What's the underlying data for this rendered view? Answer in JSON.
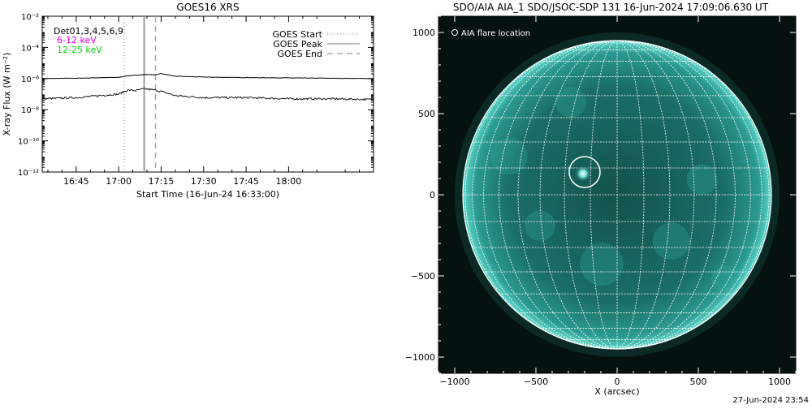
{
  "footer_timestamp": "27-Jun-2024 23:54",
  "chart_data": [
    {
      "type": "line",
      "title": "GOES16 XRS",
      "xlabel": "Start Time (16-Jun-24 16:33:00)",
      "ylabel": "X-ray Flux (W m⁻²)",
      "y_scale": "log",
      "ylim": [
        1e-12,
        0.01
      ],
      "xlim": [
        "16:33",
        "18:30"
      ],
      "x_ticks": [
        "16:45",
        "17:00",
        "17:15",
        "17:30",
        "17:45",
        "18:00"
      ],
      "y_ticks": [
        "10⁻¹²",
        "10⁻¹⁰",
        "10⁻⁸",
        "10⁻⁶",
        "10⁻⁴",
        "10⁻²"
      ],
      "annotations": {
        "detectors": "Det01,3,4,5,6,9",
        "band_low": "6-12 keV",
        "band_high": "12-25 keV"
      },
      "legend_position": "top-right",
      "legend": [
        {
          "label": "GOES Start",
          "style": "dotted"
        },
        {
          "label": "GOES Peak",
          "style": "solid"
        },
        {
          "label": "GOES End",
          "style": "dashed"
        }
      ],
      "event_lines": [
        {
          "name": "GOES Start",
          "time": "17:02",
          "style": "dotted"
        },
        {
          "name": "GOES Peak",
          "time": "17:09",
          "style": "solid"
        },
        {
          "name": "GOES End",
          "time": "17:13",
          "style": "dashed"
        }
      ],
      "series": [
        {
          "name": "6-12 keV",
          "x": [
            "16:33",
            "16:45",
            "17:00",
            "17:03",
            "17:06",
            "17:09",
            "17:11",
            "17:13",
            "17:15",
            "17:20",
            "17:30",
            "17:45",
            "18:00",
            "18:15",
            "18:30"
          ],
          "y": [
            1e-06,
            1.05e-06,
            1.2e-06,
            1.5e-06,
            1.65e-06,
            1.8e-06,
            1.8e-06,
            1.75e-06,
            2.1e-06,
            1.4e-06,
            1.25e-06,
            1.15e-06,
            1.1e-06,
            1.05e-06,
            1e-06
          ]
        },
        {
          "name": "12-25 keV",
          "x": [
            "16:33",
            "16:45",
            "17:00",
            "17:03",
            "17:06",
            "17:09",
            "17:11",
            "17:13",
            "17:15",
            "17:20",
            "17:30",
            "17:45",
            "18:00",
            "18:15",
            "18:30"
          ],
          "y": [
            5e-08,
            6e-08,
            1e-07,
            1.8e-07,
            1.7e-07,
            2.2e-07,
            2e-07,
            1.8e-07,
            1.5e-07,
            8e-08,
            6e-08,
            6e-08,
            5e-08,
            5e-08,
            4.5e-08
          ]
        }
      ]
    },
    {
      "type": "image",
      "title": "SDO/AIA AIA_1 SDO/JSOC-SDP 131 16-Jun-2024 17:09:06.630 UT",
      "xlabel": "X (arcsec)",
      "ylabel": "",
      "xlim": [
        -1100,
        1100
      ],
      "ylim": [
        -1100,
        1100
      ],
      "x_ticks": [
        -1000,
        -500,
        0,
        500,
        1000
      ],
      "y_ticks": [
        -1000,
        -500,
        0,
        500,
        1000
      ],
      "legend": "AIA flare location",
      "legend_position": "top-left",
      "grid": "heliographic, 10 degree",
      "disk_radius_arcsec": 950,
      "flare_location_arcsec": {
        "x": -200,
        "y": 140
      },
      "colors": {
        "disk": "#1a7a72",
        "background": "#061210",
        "grid": "#ffffff"
      }
    }
  ]
}
